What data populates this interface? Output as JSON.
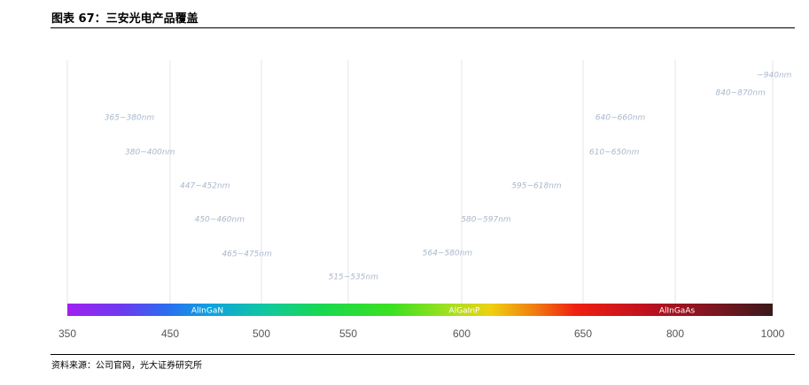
{
  "header": {
    "title": "图表 67：三安光电产品覆盖"
  },
  "footer": {
    "source": "资料来源：公司官网，光大证券研究所"
  },
  "chart_data": {
    "type": "bar",
    "x_ticks": [
      "350",
      "450",
      "500",
      "550",
      "600",
      "650",
      "800",
      "1000"
    ],
    "spectrum_labels": [
      "AlInGaN",
      "AlGaInP",
      "AlInGaAs"
    ],
    "ranges": [
      {
        "label": "365~380nm",
        "start": 365,
        "end": 380,
        "color": "#9a3df0"
      },
      {
        "label": "380~400nm",
        "start": 380,
        "end": 400,
        "color": "#3a5ff0"
      },
      {
        "label": "447~452nm",
        "start": 447,
        "end": 452,
        "color": "#1f8fe0"
      },
      {
        "label": "450~460nm",
        "start": 450,
        "end": 460,
        "color": "#1fa6c0"
      },
      {
        "label": "465~475nm",
        "start": 465,
        "end": 475,
        "color": "#1fc07a"
      },
      {
        "label": "515~535nm",
        "start": 515,
        "end": 535,
        "color": "#2fd82f"
      },
      {
        "label": "564~580nm",
        "start": 564,
        "end": 580,
        "color": "#7ed82a"
      },
      {
        "label": "580~597nm",
        "start": 580,
        "end": 597,
        "color": "#b6dc2a"
      },
      {
        "label": "595~618nm",
        "start": 595,
        "end": 618,
        "color": "#f0cc1a"
      },
      {
        "label": "610~650nm",
        "start": 610,
        "end": 650,
        "color": "#f09018"
      },
      {
        "label": "640~660nm",
        "start": 640,
        "end": 660,
        "color": "#e8301c"
      },
      {
        "label": "840~870nm",
        "start": 840,
        "end": 870,
        "color": "#7a0c14"
      },
      {
        "label": "~940nm",
        "start": 925,
        "end": 955,
        "color": "#6a1018"
      }
    ],
    "colors": {
      "grid": "#e6e6e6",
      "range_label": "#a9b8cc",
      "tick_label": "#555555"
    }
  }
}
